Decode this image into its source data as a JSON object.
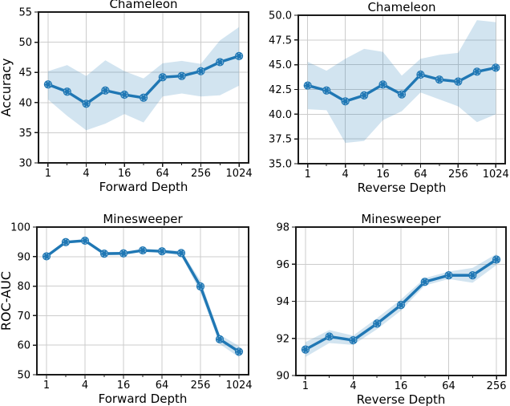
{
  "figure": {
    "background": "#ffffff",
    "palette": {
      "line": "#1f77b4",
      "band": "#1f77b4",
      "band_opacity": 0.2,
      "grid": "#cccccc",
      "spine": "#1a1a1a",
      "text": "#000000",
      "marker_ring": "#ffffff"
    }
  },
  "chart_data": [
    {
      "type": "line",
      "title": "Chameleon",
      "xlabel": "Forward Depth",
      "ylabel": "Accuracy",
      "x_scale": "log2",
      "x": [
        1,
        2,
        4,
        8,
        16,
        32,
        64,
        128,
        256,
        512,
        1024
      ],
      "y": [
        43.0,
        41.8,
        39.8,
        42.0,
        41.3,
        40.8,
        44.2,
        44.4,
        45.2,
        46.7,
        47.7
      ],
      "band_lower": [
        40.5,
        37.8,
        35.4,
        36.5,
        38.1,
        36.7,
        41.0,
        41.5,
        41.0,
        41.2,
        42.8
      ],
      "band_upper": [
        45.2,
        46.2,
        44.4,
        47.0,
        45.2,
        44.0,
        46.5,
        46.9,
        46.4,
        50.3,
        52.5
      ],
      "ylim": [
        30,
        55
      ],
      "yticks": [
        30,
        35,
        40,
        45,
        50,
        55
      ],
      "ytick_labels": [
        "30",
        "35",
        "40",
        "45",
        "50",
        "55"
      ],
      "xticks": [
        1,
        4,
        16,
        64,
        256,
        1024
      ],
      "xtick_labels": [
        "1",
        "4",
        "16",
        "64",
        "256",
        "1024"
      ],
      "grid": true,
      "legend": "none"
    },
    {
      "type": "line",
      "title": "Chameleon",
      "xlabel": "Reverse Depth",
      "ylabel": "",
      "x_scale": "log2",
      "x": [
        1,
        2,
        4,
        8,
        16,
        32,
        64,
        128,
        256,
        512,
        1024
      ],
      "y": [
        42.9,
        42.4,
        41.3,
        41.9,
        43.0,
        42.0,
        44.0,
        43.5,
        43.3,
        44.3,
        44.7
      ],
      "band_lower": [
        40.5,
        40.4,
        37.1,
        37.3,
        39.4,
        40.3,
        42.2,
        41.5,
        40.8,
        39.2,
        40.0
      ],
      "band_upper": [
        45.3,
        44.4,
        45.6,
        46.6,
        46.3,
        43.9,
        45.6,
        46.0,
        46.2,
        49.5,
        49.3
      ],
      "ylim": [
        35,
        50
      ],
      "yticks": [
        35,
        37.5,
        40,
        42.5,
        45,
        47.5,
        50
      ],
      "ytick_labels": [
        "35.0",
        "37.5",
        "40.0",
        "42.5",
        "45.0",
        "47.5",
        "50.0"
      ],
      "xticks": [
        1,
        4,
        16,
        64,
        256,
        1024
      ],
      "xtick_labels": [
        "1",
        "4",
        "16",
        "64",
        "256",
        "1024"
      ],
      "grid": true,
      "legend": "none"
    },
    {
      "type": "line",
      "title": "Minesweeper",
      "xlabel": "Forward Depth",
      "ylabel": "ROC-AUC",
      "x_scale": "log2",
      "x": [
        1,
        2,
        4,
        8,
        16,
        32,
        64,
        128,
        256,
        512,
        1024
      ],
      "y": [
        90.1,
        94.9,
        95.4,
        91.0,
        91.1,
        92.1,
        91.8,
        91.2,
        79.9,
        62.0,
        57.8
      ],
      "band_lower": [
        89.5,
        94.4,
        94.9,
        90.5,
        90.6,
        91.6,
        91.3,
        90.4,
        77.9,
        60.4,
        55.9
      ],
      "band_upper": [
        90.7,
        95.4,
        95.9,
        91.5,
        91.6,
        92.6,
        92.3,
        92.0,
        81.9,
        63.6,
        59.7
      ],
      "ylim": [
        50,
        100
      ],
      "yticks": [
        50,
        60,
        70,
        80,
        90,
        100
      ],
      "ytick_labels": [
        "50",
        "60",
        "70",
        "80",
        "90",
        "100"
      ],
      "xticks": [
        1,
        4,
        16,
        64,
        256,
        1024
      ],
      "xtick_labels": [
        "1",
        "4",
        "16",
        "64",
        "256",
        "1024"
      ],
      "grid": true,
      "legend": "none"
    },
    {
      "type": "line",
      "title": "Minesweeper",
      "xlabel": "Reverse Depth",
      "ylabel": "",
      "x_scale": "log2",
      "x": [
        1,
        2,
        4,
        8,
        16,
        32,
        64,
        128,
        256
      ],
      "y": [
        91.4,
        92.1,
        91.9,
        92.8,
        93.8,
        95.05,
        95.4,
        95.4,
        96.25
      ],
      "band_lower": [
        91.0,
        91.75,
        91.65,
        92.5,
        93.5,
        94.85,
        95.2,
        95.0,
        95.95
      ],
      "band_upper": [
        91.8,
        92.45,
        92.15,
        93.1,
        94.1,
        95.25,
        95.6,
        95.8,
        96.55
      ],
      "ylim": [
        90,
        98
      ],
      "yticks": [
        90,
        92,
        94,
        96,
        98
      ],
      "ytick_labels": [
        "90",
        "92",
        "94",
        "96",
        "98"
      ],
      "xticks": [
        1,
        4,
        16,
        64,
        256
      ],
      "xtick_labels": [
        "1",
        "4",
        "16",
        "64",
        "256"
      ],
      "grid": true,
      "legend": "none"
    }
  ]
}
